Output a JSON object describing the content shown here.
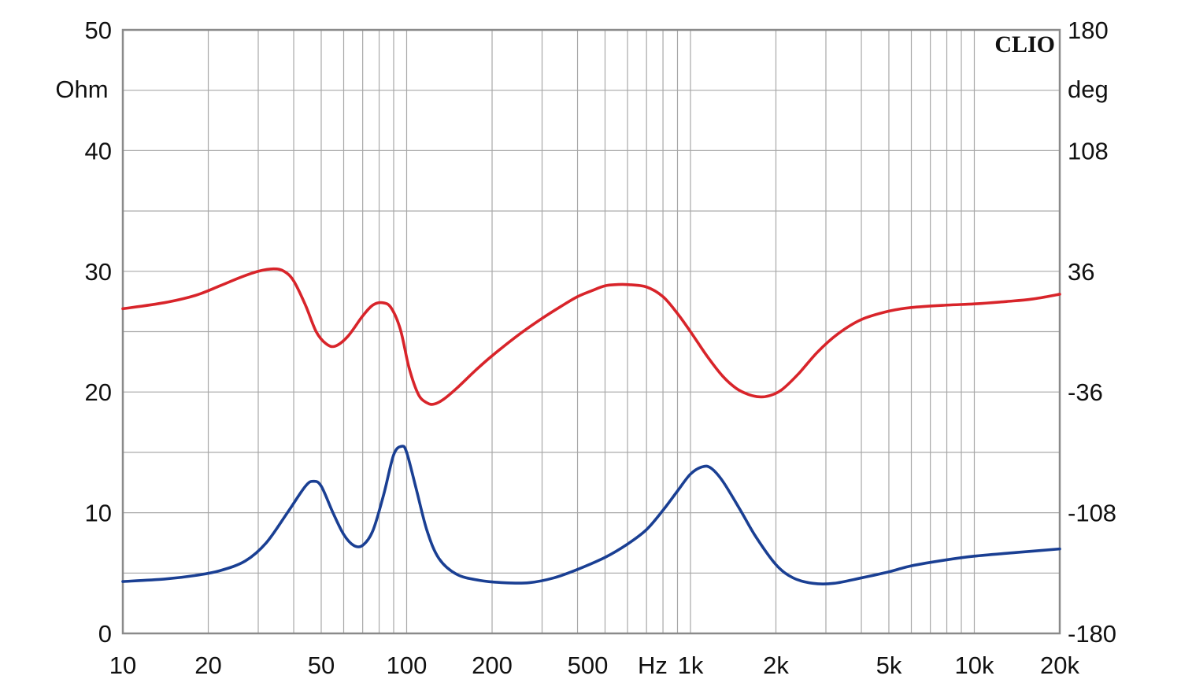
{
  "chart_data": {
    "type": "line",
    "brand": "CLIO",
    "x_scale": "log",
    "xlim": [
      10,
      20000
    ],
    "x_ticks": [
      {
        "value": 10,
        "label": "10"
      },
      {
        "value": 20,
        "label": "20"
      },
      {
        "value": 50,
        "label": "50"
      },
      {
        "value": 100,
        "label": "100"
      },
      {
        "value": 200,
        "label": "200"
      },
      {
        "value": 500,
        "label": "500"
      },
      {
        "value": 1000,
        "label": "1k"
      },
      {
        "value": 2000,
        "label": "2k"
      },
      {
        "value": 5000,
        "label": "5k"
      },
      {
        "value": 10000,
        "label": "10k"
      },
      {
        "value": 20000,
        "label": "20k"
      }
    ],
    "x_unit": "Hz",
    "y_left": {
      "unit": "Ohm",
      "lim": [
        0,
        50
      ],
      "ticks": [
        0,
        10,
        20,
        30,
        40,
        50
      ]
    },
    "y_right": {
      "unit": "deg",
      "lim": [
        -180,
        180
      ],
      "ticks": [
        -180,
        -108,
        -36,
        36,
        108,
        180
      ]
    },
    "grid": true,
    "series": [
      {
        "axis": "left",
        "color": "#1a3f93",
        "points": [
          [
            10,
            4.3
          ],
          [
            14,
            4.5
          ],
          [
            18,
            4.8
          ],
          [
            22,
            5.2
          ],
          [
            27,
            6.0
          ],
          [
            32,
            7.5
          ],
          [
            38,
            10.0
          ],
          [
            44,
            12.2
          ],
          [
            47,
            12.6
          ],
          [
            50,
            12.2
          ],
          [
            55,
            10.0
          ],
          [
            60,
            8.2
          ],
          [
            65,
            7.3
          ],
          [
            70,
            7.3
          ],
          [
            76,
            8.5
          ],
          [
            83,
            11.5
          ],
          [
            90,
            14.8
          ],
          [
            96,
            15.5
          ],
          [
            100,
            15.0
          ],
          [
            108,
            12.0
          ],
          [
            118,
            8.5
          ],
          [
            130,
            6.2
          ],
          [
            150,
            4.9
          ],
          [
            180,
            4.4
          ],
          [
            220,
            4.2
          ],
          [
            270,
            4.2
          ],
          [
            330,
            4.6
          ],
          [
            400,
            5.3
          ],
          [
            500,
            6.3
          ],
          [
            600,
            7.4
          ],
          [
            700,
            8.6
          ],
          [
            800,
            10.2
          ],
          [
            900,
            11.8
          ],
          [
            1000,
            13.2
          ],
          [
            1100,
            13.8
          ],
          [
            1180,
            13.7
          ],
          [
            1300,
            12.6
          ],
          [
            1500,
            10.2
          ],
          [
            1700,
            8.0
          ],
          [
            2000,
            5.7
          ],
          [
            2300,
            4.6
          ],
          [
            2700,
            4.15
          ],
          [
            3200,
            4.15
          ],
          [
            4000,
            4.6
          ],
          [
            5000,
            5.1
          ],
          [
            6000,
            5.6
          ],
          [
            8000,
            6.1
          ],
          [
            10000,
            6.4
          ],
          [
            14000,
            6.7
          ],
          [
            20000,
            7.0
          ]
        ]
      },
      {
        "axis": "left",
        "color": "#d8242a",
        "points": [
          [
            10,
            26.9
          ],
          [
            14,
            27.4
          ],
          [
            18,
            28.0
          ],
          [
            22,
            28.8
          ],
          [
            26,
            29.5
          ],
          [
            30,
            30.0
          ],
          [
            34,
            30.2
          ],
          [
            37,
            30.0
          ],
          [
            40,
            29.2
          ],
          [
            44,
            27.2
          ],
          [
            48,
            25.0
          ],
          [
            52,
            24.0
          ],
          [
            56,
            23.8
          ],
          [
            62,
            24.6
          ],
          [
            70,
            26.3
          ],
          [
            76,
            27.2
          ],
          [
            82,
            27.4
          ],
          [
            88,
            27.0
          ],
          [
            95,
            25.2
          ],
          [
            102,
            22.0
          ],
          [
            110,
            19.8
          ],
          [
            118,
            19.1
          ],
          [
            125,
            19.0
          ],
          [
            135,
            19.4
          ],
          [
            150,
            20.3
          ],
          [
            175,
            21.8
          ],
          [
            200,
            23.0
          ],
          [
            250,
            24.8
          ],
          [
            300,
            26.1
          ],
          [
            350,
            27.1
          ],
          [
            400,
            27.9
          ],
          [
            450,
            28.4
          ],
          [
            500,
            28.8
          ],
          [
            550,
            28.9
          ],
          [
            600,
            28.9
          ],
          [
            700,
            28.7
          ],
          [
            800,
            27.9
          ],
          [
            900,
            26.5
          ],
          [
            1000,
            25.0
          ],
          [
            1150,
            22.9
          ],
          [
            1300,
            21.3
          ],
          [
            1450,
            20.3
          ],
          [
            1600,
            19.8
          ],
          [
            1750,
            19.6
          ],
          [
            1900,
            19.7
          ],
          [
            2100,
            20.2
          ],
          [
            2400,
            21.5
          ],
          [
            2800,
            23.3
          ],
          [
            3300,
            24.8
          ],
          [
            4000,
            26.0
          ],
          [
            5000,
            26.7
          ],
          [
            6000,
            27.0
          ],
          [
            8000,
            27.2
          ],
          [
            10000,
            27.3
          ],
          [
            13000,
            27.5
          ],
          [
            16000,
            27.7
          ],
          [
            20000,
            28.1
          ]
        ]
      }
    ]
  }
}
